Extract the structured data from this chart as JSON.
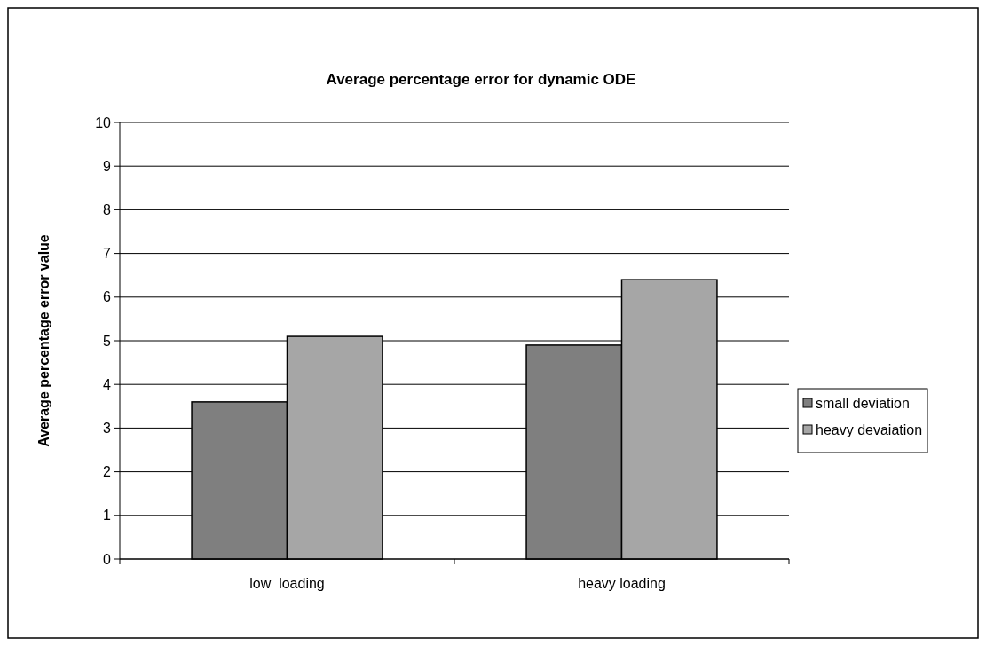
{
  "chart_data": {
    "type": "bar",
    "title": "Average percentage error for dynamic ODE",
    "ylabel": "Average percentage error value",
    "categories": [
      "low  loading",
      "heavy loading"
    ],
    "series": [
      {
        "name": "small deviation",
        "color": "#7f7f7f",
        "values": [
          3.6,
          4.9
        ]
      },
      {
        "name": "heavy devaiation",
        "color": "#a6a6a6",
        "values": [
          5.1,
          6.4
        ]
      }
    ],
    "ylim": [
      0,
      10
    ],
    "yticks": [
      0,
      1,
      2,
      3,
      4,
      5,
      6,
      7,
      8,
      9,
      10
    ],
    "grid": "y",
    "legend": "right"
  }
}
